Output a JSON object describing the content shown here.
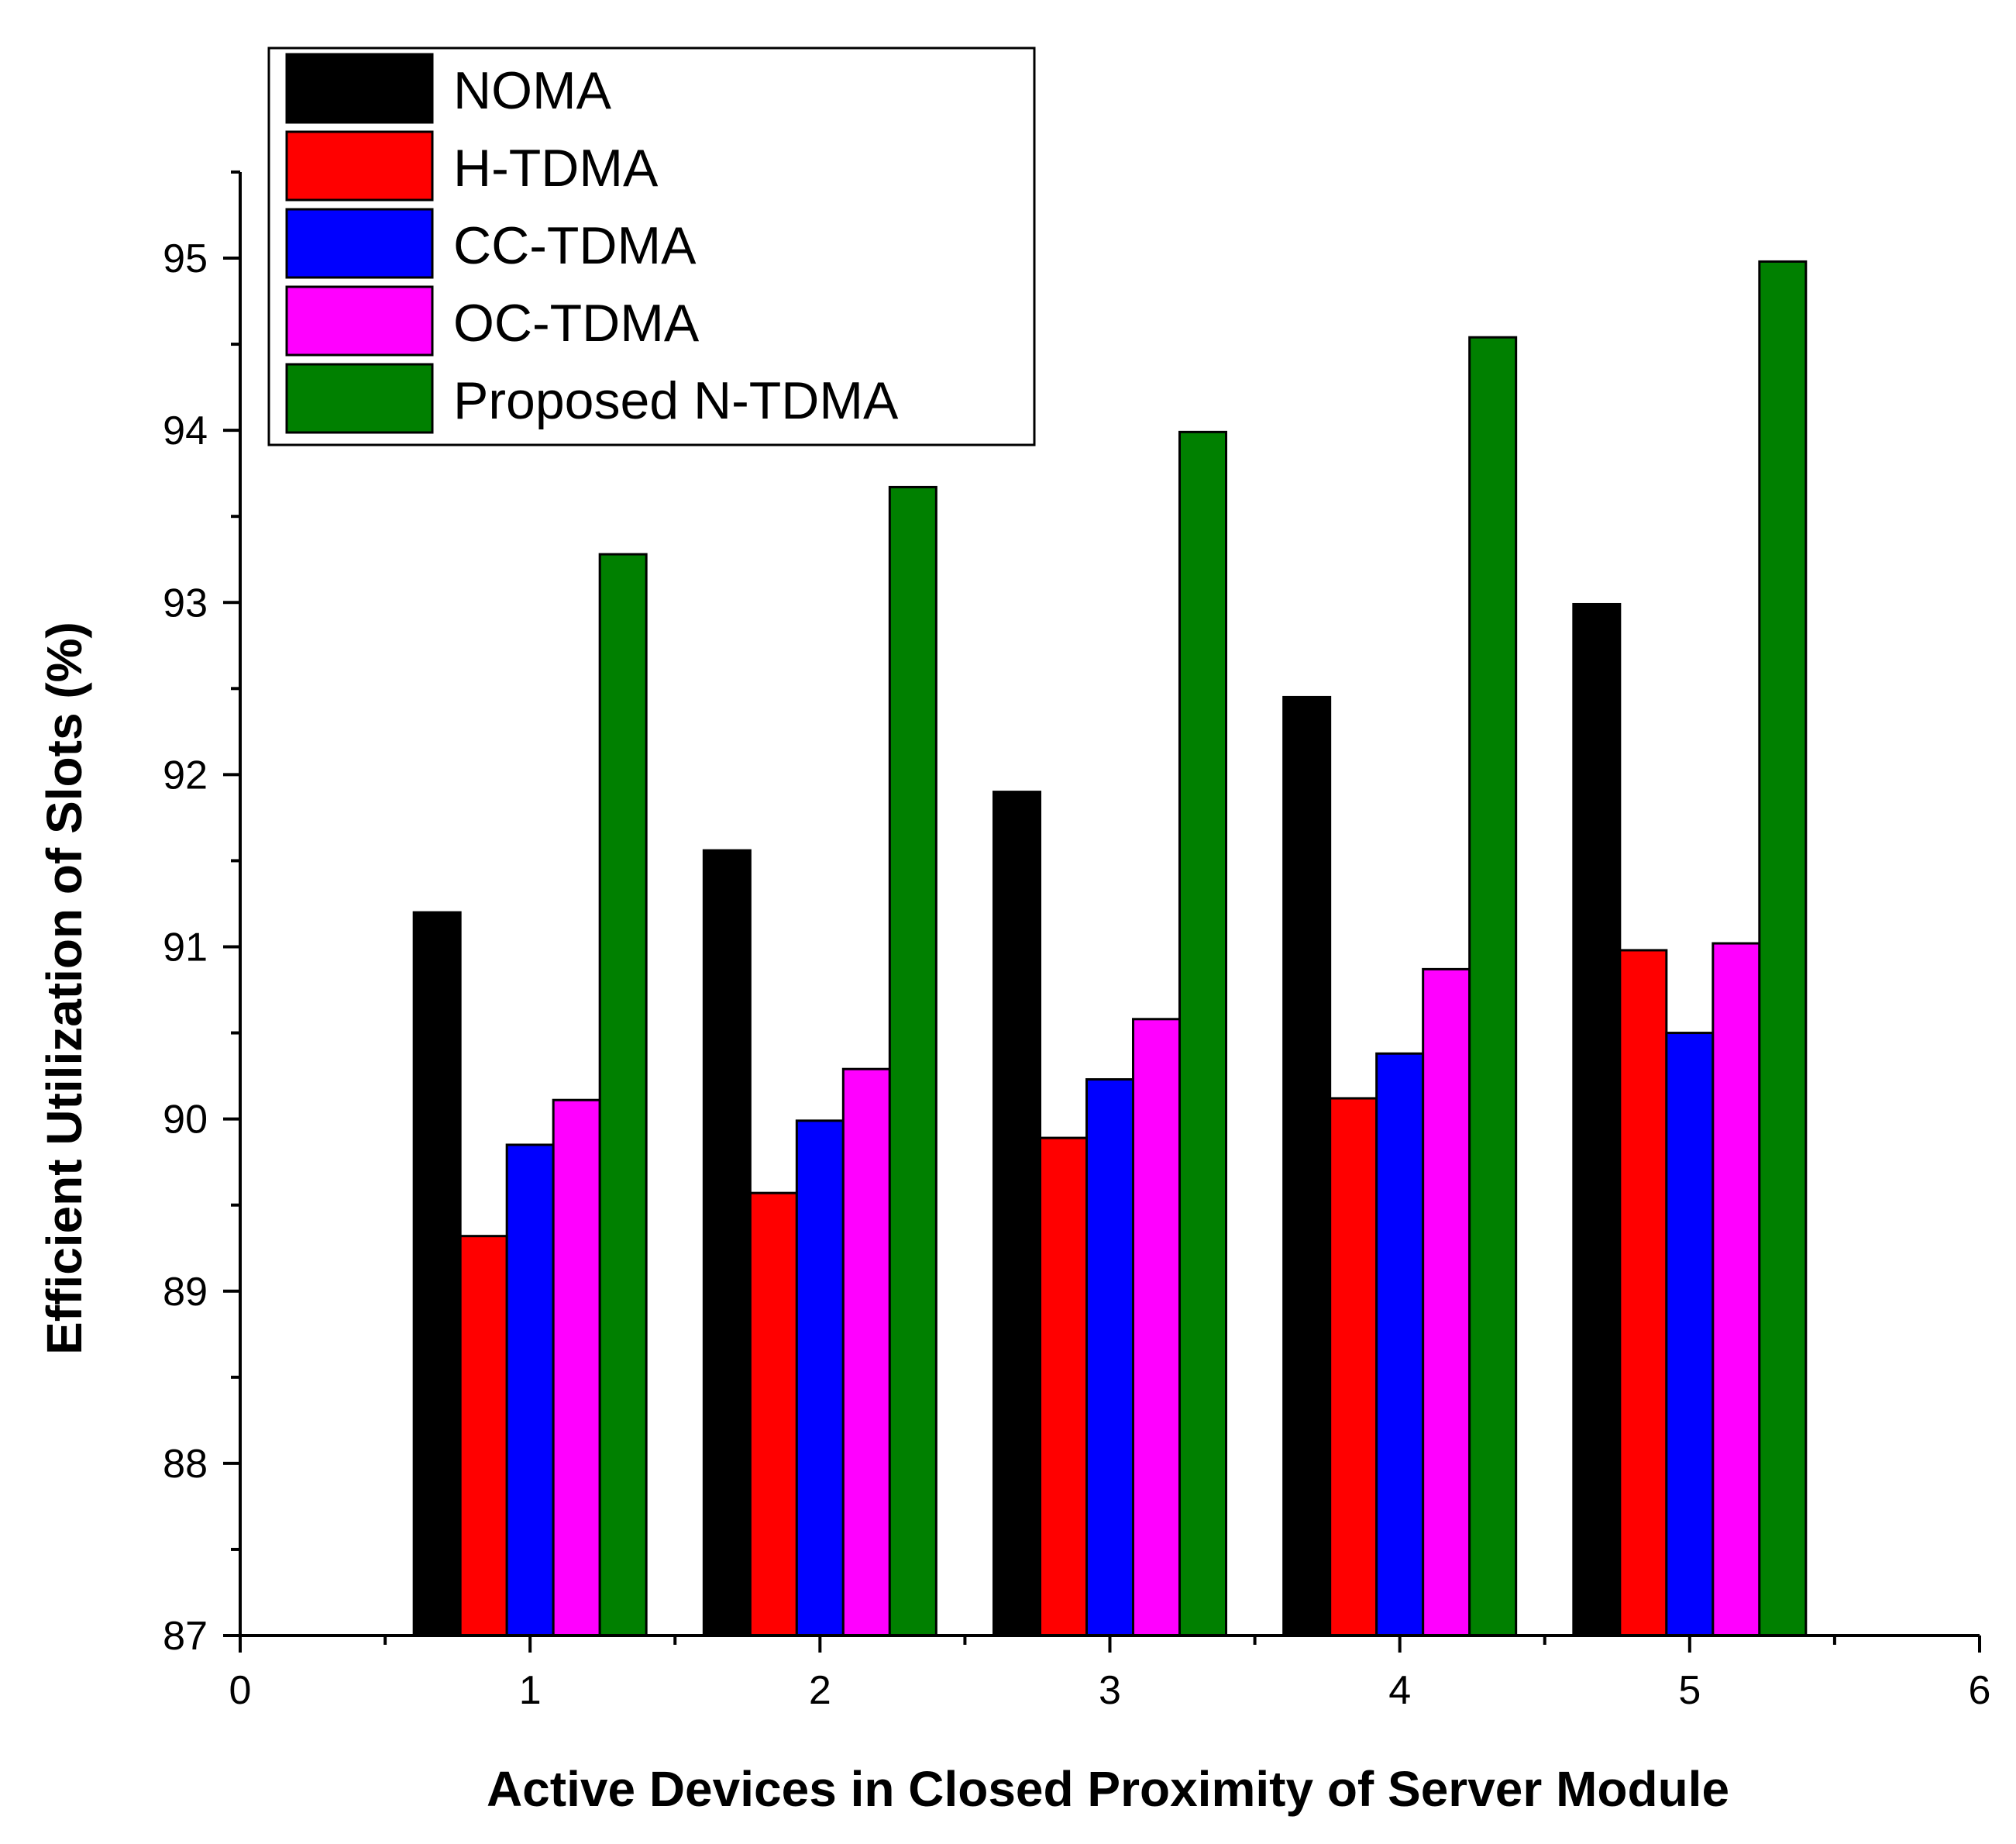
{
  "chart_data": {
    "type": "bar",
    "title": "",
    "xlabel": "Active Devices in Closed Proximity of Server Module",
    "ylabel": "Efficient Utilization of Slots (%)",
    "xlim": [
      0,
      6
    ],
    "ylim": [
      87,
      95.5
    ],
    "x_ticks": [
      "0",
      "1",
      "2",
      "3",
      "4",
      "5",
      "6"
    ],
    "y_ticks": [
      "87",
      "88",
      "89",
      "90",
      "91",
      "92",
      "93",
      "94",
      "95"
    ],
    "categories": [
      1,
      2,
      3,
      4,
      5
    ],
    "series": [
      {
        "name": "NOMA",
        "color": "#000000",
        "values": [
          91.2,
          91.56,
          91.9,
          92.45,
          92.99
        ]
      },
      {
        "name": "H-TDMA",
        "color": "#ff0000",
        "values": [
          89.32,
          89.57,
          89.89,
          90.12,
          90.98
        ]
      },
      {
        "name": "CC-TDMA",
        "color": "#0000ff",
        "values": [
          89.85,
          89.99,
          90.23,
          90.38,
          90.5
        ]
      },
      {
        "name": "OC-TDMA",
        "color": "#ff00ff",
        "values": [
          90.11,
          90.29,
          90.58,
          90.87,
          91.02
        ]
      },
      {
        "name": "Proposed N-TDMA",
        "color": "#008000",
        "values": [
          93.28,
          93.67,
          93.99,
          94.54,
          94.98
        ]
      }
    ],
    "grid": false,
    "legend": "top-left"
  }
}
